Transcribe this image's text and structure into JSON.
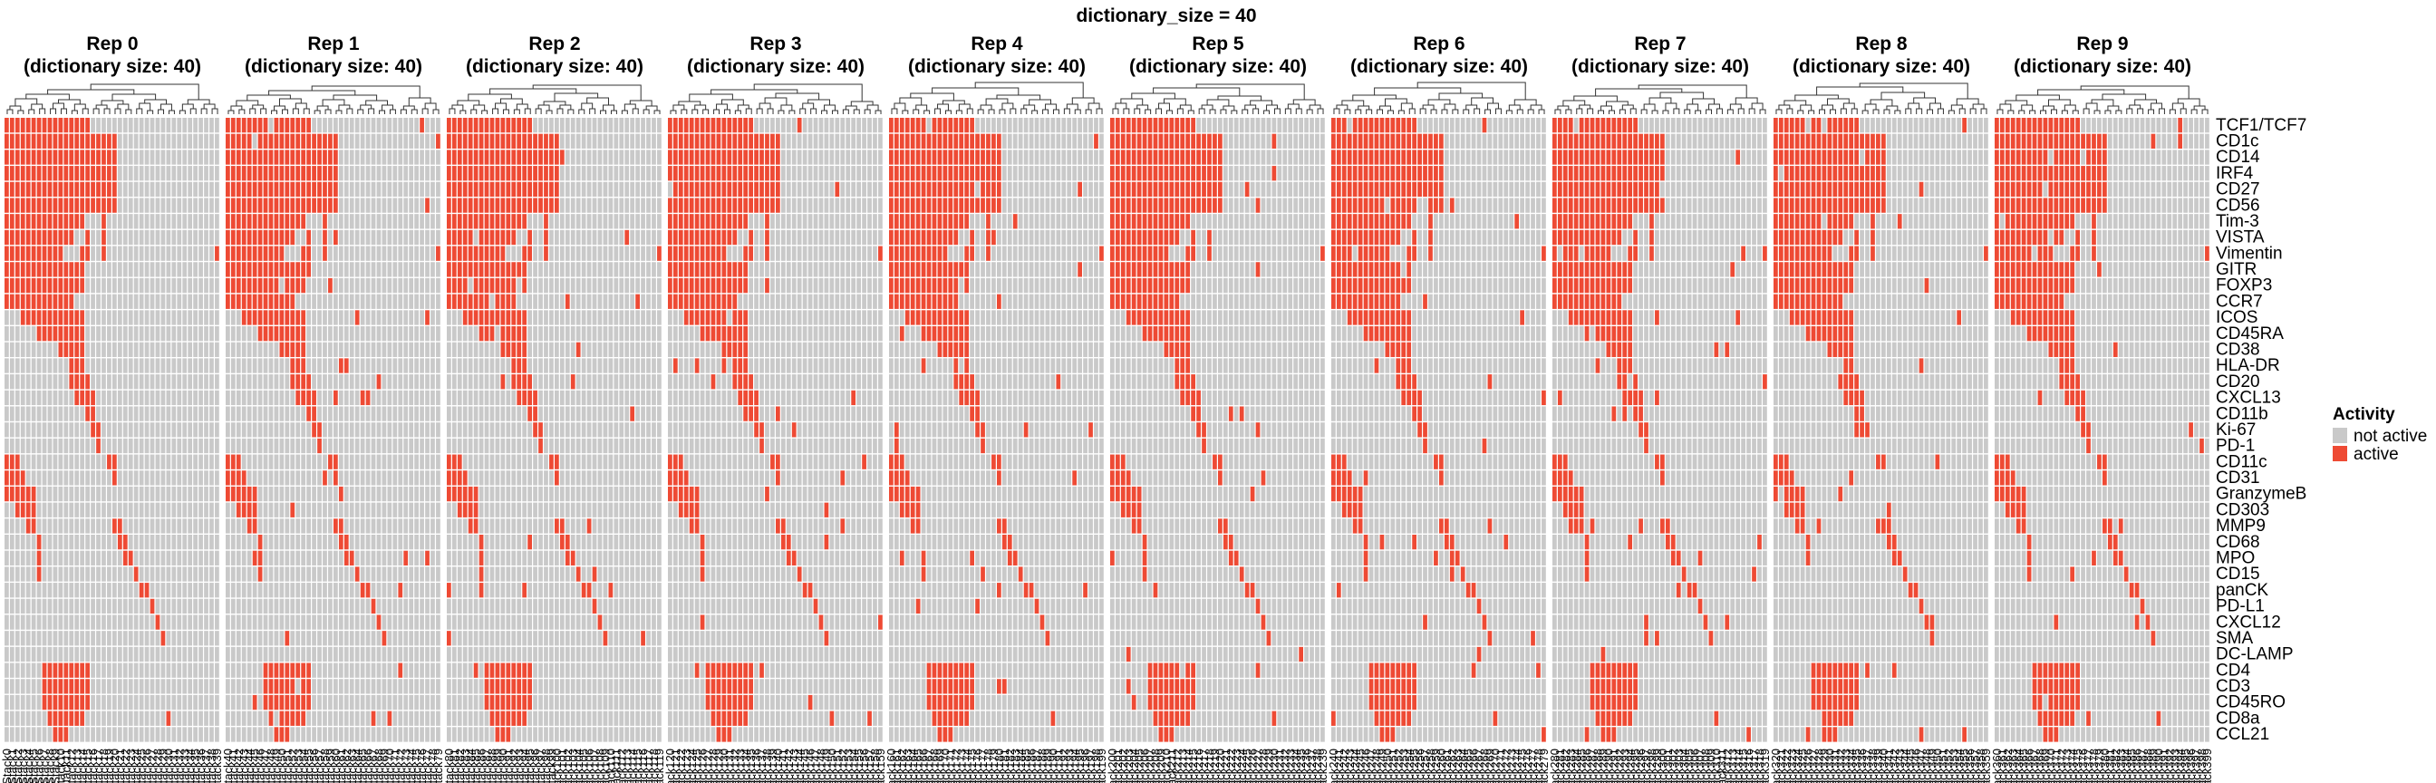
{
  "chart_data": {
    "type": "heatmap",
    "title": "dictionary_size = 40",
    "panels": [
      {
        "name": "Rep 0",
        "subtitle": "(dictionary size: 40)"
      },
      {
        "name": "Rep 1",
        "subtitle": "(dictionary size: 40)"
      },
      {
        "name": "Rep 2",
        "subtitle": "(dictionary size: 40)"
      },
      {
        "name": "Rep 3",
        "subtitle": "(dictionary size: 40)"
      },
      {
        "name": "Rep 4",
        "subtitle": "(dictionary size: 40)"
      },
      {
        "name": "Rep 5",
        "subtitle": "(dictionary size: 40)"
      },
      {
        "name": "Rep 6",
        "subtitle": "(dictionary size: 40)"
      },
      {
        "name": "Rep 7",
        "subtitle": "(dictionary size: 40)"
      },
      {
        "name": "Rep 8",
        "subtitle": "(dictionary size: 40)"
      },
      {
        "name": "Rep 9",
        "subtitle": "(dictionary size: 40)"
      }
    ],
    "columns_per_panel": 40,
    "row_labels": [
      "TCF1/TCF7",
      "CD1c",
      "CD14",
      "IRF4",
      "CD27",
      "CD56",
      "Tim-3",
      "VISTA",
      "Vimentin",
      "GITR",
      "FOXP3",
      "CCR7",
      "ICOS",
      "CD45RA",
      "CD38",
      "HLA-DR",
      "CD20",
      "CXCL13",
      "CD11b",
      "Ki-67",
      "PD-1",
      "CD11c",
      "CD31",
      "GranzymeB",
      "CD303",
      "MMP9",
      "CD68",
      "MPO",
      "CD15",
      "panCK",
      "PD-L1",
      "CXCL12",
      "SMA",
      "DC-LAMP",
      "CD4",
      "CD3",
      "CD45RO",
      "CD8a",
      "CCL21"
    ],
    "active_runs": [
      [
        [
          0,
          15
        ]
      ],
      [
        [
          0,
          20
        ]
      ],
      [
        [
          0,
          20
        ]
      ],
      [
        [
          0,
          20
        ]
      ],
      [
        [
          0,
          20
        ]
      ],
      [
        [
          0,
          20
        ]
      ],
      [
        [
          0,
          14
        ],
        [
          18,
          18
        ]
      ],
      [
        [
          0,
          12
        ],
        [
          15,
          15
        ],
        [
          18,
          18
        ]
      ],
      [
        [
          0,
          10
        ],
        [
          14,
          15
        ],
        [
          18,
          18
        ],
        [
          39,
          39
        ]
      ],
      [
        [
          0,
          14
        ]
      ],
      [
        [
          0,
          14
        ]
      ],
      [
        [
          0,
          12
        ]
      ],
      [
        [
          3,
          14
        ]
      ],
      [
        [
          6,
          14
        ]
      ],
      [
        [
          10,
          14
        ]
      ],
      [
        [
          12,
          14
        ]
      ],
      [
        [
          12,
          15
        ]
      ],
      [
        [
          13,
          16
        ]
      ],
      [
        [
          15,
          16
        ]
      ],
      [
        [
          16,
          17
        ]
      ],
      [
        [
          17,
          17
        ]
      ],
      [
        [
          0,
          2
        ],
        [
          19,
          20
        ]
      ],
      [
        [
          0,
          3
        ],
        [
          20,
          20
        ]
      ],
      [
        [
          0,
          5
        ]
      ],
      [
        [
          2,
          5
        ]
      ],
      [
        [
          4,
          5
        ],
        [
          20,
          21
        ]
      ],
      [
        [
          6,
          6
        ],
        [
          21,
          22
        ]
      ],
      [
        [
          6,
          6
        ],
        [
          22,
          23
        ]
      ],
      [
        [
          6,
          6
        ],
        [
          24,
          24
        ]
      ],
      [
        [
          25,
          26
        ]
      ],
      [
        [
          27,
          27
        ]
      ],
      [
        [
          28,
          28
        ]
      ],
      [
        [
          29,
          29
        ]
      ],
      [],
      [
        [
          7,
          15
        ]
      ],
      [
        [
          7,
          15
        ]
      ],
      [
        [
          7,
          15
        ]
      ],
      [
        [
          8,
          14
        ],
        [
          30,
          30
        ]
      ],
      [
        [
          9,
          11
        ]
      ]
    ],
    "legend": {
      "title": "Activity",
      "placement": "right",
      "items": [
        {
          "label": "not active",
          "color": "#c9c9c9"
        },
        {
          "label": "active",
          "color": "#ee4a34"
        }
      ]
    },
    "x_tick_label_text": "Stack",
    "colors": {
      "active": "#ee4a34",
      "inactive": "#c9c9c9",
      "grid": "#ffffff",
      "dendrogram": "#333333"
    }
  }
}
